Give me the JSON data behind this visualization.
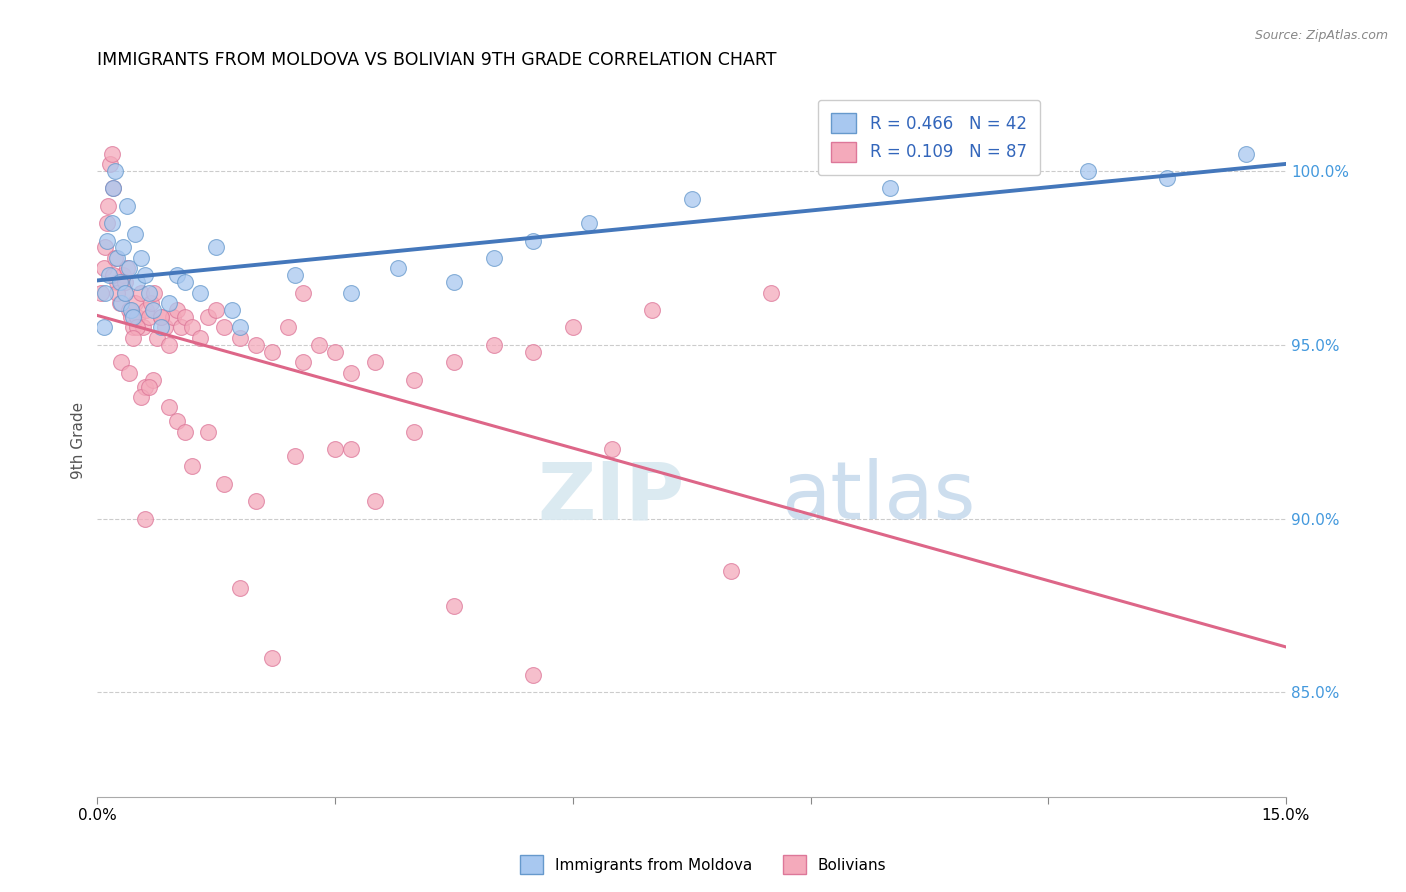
{
  "title": "IMMIGRANTS FROM MOLDOVA VS BOLIVIAN 9TH GRADE CORRELATION CHART",
  "source": "Source: ZipAtlas.com",
  "ylabel": "9th Grade",
  "right_yticks": [
    85.0,
    90.0,
    95.0,
    100.0
  ],
  "xmin": 0.0,
  "xmax": 15.0,
  "ymin": 82.0,
  "ymax": 102.5,
  "blue_R": 0.466,
  "blue_N": 42,
  "pink_R": 0.109,
  "pink_N": 87,
  "blue_label": "Immigrants from Moldova",
  "pink_label": "Bolivians",
  "blue_color": "#A8C8F0",
  "pink_color": "#F4AABB",
  "blue_edge_color": "#6699CC",
  "pink_edge_color": "#DD7799",
  "blue_line_color": "#4477BB",
  "pink_line_color": "#DD6688",
  "blue_scatter_x": [
    0.08,
    0.1,
    0.12,
    0.15,
    0.18,
    0.2,
    0.22,
    0.25,
    0.28,
    0.3,
    0.32,
    0.35,
    0.38,
    0.4,
    0.42,
    0.45,
    0.48,
    0.5,
    0.55,
    0.6,
    0.65,
    0.7,
    0.8,
    0.9,
    1.0,
    1.1,
    1.3,
    1.5,
    1.7,
    1.8,
    2.5,
    3.2,
    3.8,
    4.5,
    5.0,
    5.5,
    6.2,
    7.5,
    10.0,
    12.5,
    13.5,
    14.5
  ],
  "blue_scatter_y": [
    95.5,
    96.5,
    98.0,
    97.0,
    98.5,
    99.5,
    100.0,
    97.5,
    96.8,
    96.2,
    97.8,
    96.5,
    99.0,
    97.2,
    96.0,
    95.8,
    98.2,
    96.8,
    97.5,
    97.0,
    96.5,
    96.0,
    95.5,
    96.2,
    97.0,
    96.8,
    96.5,
    97.8,
    96.0,
    95.5,
    97.0,
    96.5,
    97.2,
    96.8,
    97.5,
    98.0,
    98.5,
    99.2,
    99.5,
    100.0,
    99.8,
    100.5
  ],
  "pink_scatter_x": [
    0.05,
    0.08,
    0.1,
    0.12,
    0.14,
    0.16,
    0.18,
    0.2,
    0.22,
    0.25,
    0.28,
    0.3,
    0.32,
    0.35,
    0.38,
    0.4,
    0.42,
    0.45,
    0.48,
    0.5,
    0.55,
    0.58,
    0.62,
    0.65,
    0.68,
    0.72,
    0.75,
    0.8,
    0.85,
    0.9,
    0.95,
    1.0,
    1.05,
    1.1,
    1.2,
    1.3,
    1.4,
    1.5,
    1.6,
    1.8,
    2.0,
    2.2,
    2.4,
    2.6,
    2.8,
    3.0,
    3.2,
    3.5,
    4.0,
    4.5,
    5.0,
    5.5,
    6.0,
    7.0,
    8.5,
    0.3,
    0.4,
    0.5,
    0.6,
    0.7,
    0.55,
    0.65,
    0.2,
    0.25,
    0.35,
    0.45,
    1.2,
    1.4,
    1.6,
    2.0,
    2.5,
    3.0,
    3.5,
    0.9,
    1.0,
    1.1,
    4.5,
    8.0,
    3.2,
    5.5,
    2.2,
    0.8,
    1.8,
    4.0,
    0.6,
    6.5,
    2.6
  ],
  "pink_scatter_y": [
    96.5,
    97.2,
    97.8,
    98.5,
    99.0,
    100.2,
    100.5,
    99.5,
    97.5,
    96.8,
    96.2,
    96.8,
    97.0,
    96.5,
    97.2,
    96.0,
    95.8,
    95.5,
    96.2,
    95.8,
    96.5,
    95.5,
    96.0,
    95.8,
    96.2,
    96.5,
    95.2,
    95.8,
    95.5,
    95.0,
    95.8,
    96.0,
    95.5,
    95.8,
    95.5,
    95.2,
    95.8,
    96.0,
    95.5,
    95.2,
    95.0,
    94.8,
    95.5,
    94.5,
    95.0,
    94.8,
    94.2,
    94.5,
    94.0,
    94.5,
    95.0,
    94.8,
    95.5,
    96.0,
    96.5,
    94.5,
    94.2,
    95.5,
    93.8,
    94.0,
    93.5,
    93.8,
    97.0,
    96.5,
    96.8,
    95.2,
    91.5,
    92.5,
    91.0,
    90.5,
    91.8,
    92.0,
    90.5,
    93.2,
    92.8,
    92.5,
    87.5,
    88.5,
    92.0,
    85.5,
    86.0,
    95.8,
    88.0,
    92.5,
    90.0,
    92.0,
    96.5
  ]
}
